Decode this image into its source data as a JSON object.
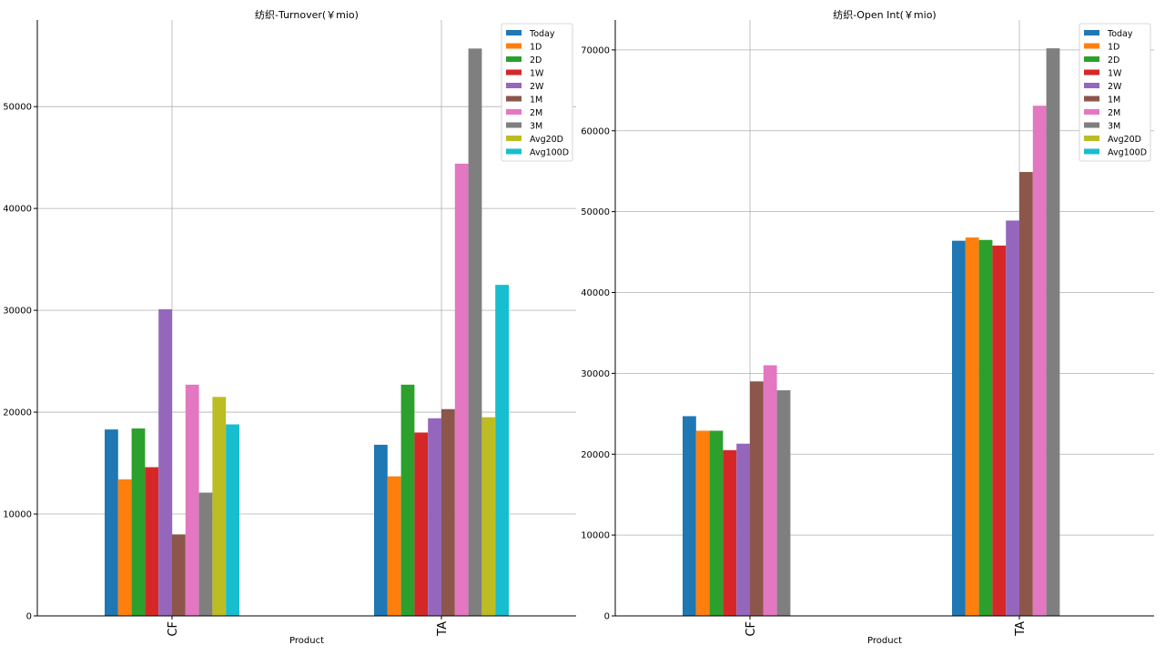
{
  "chart_data": [
    {
      "type": "bar",
      "title": "纺织-Turnover(￥mio)",
      "xlabel": "Product",
      "ylabel": "",
      "categories": [
        "CF",
        "TA"
      ],
      "ylim": [
        0,
        58500
      ],
      "yticks": [
        0,
        10000,
        20000,
        30000,
        40000,
        50000
      ],
      "grid": true,
      "legend_position": "top-right",
      "series": [
        {
          "name": "Today",
          "color": "#1f77b4",
          "values": [
            18300,
            16800
          ]
        },
        {
          "name": "1D",
          "color": "#ff7f0e",
          "values": [
            13400,
            13700
          ]
        },
        {
          "name": "2D",
          "color": "#2ca02c",
          "values": [
            18400,
            22700
          ]
        },
        {
          "name": "1W",
          "color": "#d62728",
          "values": [
            14600,
            18000
          ]
        },
        {
          "name": "2W",
          "color": "#9467bd",
          "values": [
            30100,
            19400
          ]
        },
        {
          "name": "1M",
          "color": "#8c564b",
          "values": [
            8000,
            20300
          ]
        },
        {
          "name": "2M",
          "color": "#e377c2",
          "values": [
            22700,
            44400
          ]
        },
        {
          "name": "3M",
          "color": "#7f7f7f",
          "values": [
            12100,
            55700
          ]
        },
        {
          "name": "Avg20D",
          "color": "#bcbd22",
          "values": [
            21500,
            19500
          ]
        },
        {
          "name": "Avg100D",
          "color": "#17becf",
          "values": [
            18800,
            32500
          ]
        }
      ]
    },
    {
      "type": "bar",
      "title": "纺织-Open Int(￥mio)",
      "xlabel": "Product",
      "ylabel": "",
      "categories": [
        "CF",
        "TA"
      ],
      "ylim": [
        0,
        73700
      ],
      "yticks": [
        0,
        10000,
        20000,
        30000,
        40000,
        50000,
        60000,
        70000
      ],
      "grid": true,
      "legend_position": "top-right",
      "series": [
        {
          "name": "Today",
          "color": "#1f77b4",
          "values": [
            24700,
            46400
          ]
        },
        {
          "name": "1D",
          "color": "#ff7f0e",
          "values": [
            22900,
            46800
          ]
        },
        {
          "name": "2D",
          "color": "#2ca02c",
          "values": [
            22900,
            46500
          ]
        },
        {
          "name": "1W",
          "color": "#d62728",
          "values": [
            20500,
            45800
          ]
        },
        {
          "name": "2W",
          "color": "#9467bd",
          "values": [
            21300,
            48900
          ]
        },
        {
          "name": "1M",
          "color": "#8c564b",
          "values": [
            29000,
            54900
          ]
        },
        {
          "name": "2M",
          "color": "#e377c2",
          "values": [
            31000,
            63100
          ]
        },
        {
          "name": "3M",
          "color": "#7f7f7f",
          "values": [
            27900,
            70200
          ]
        },
        {
          "name": "Avg20D",
          "color": "#bcbd22",
          "values": [
            0,
            0
          ]
        },
        {
          "name": "Avg100D",
          "color": "#17becf",
          "values": [
            0,
            0
          ]
        }
      ]
    }
  ]
}
